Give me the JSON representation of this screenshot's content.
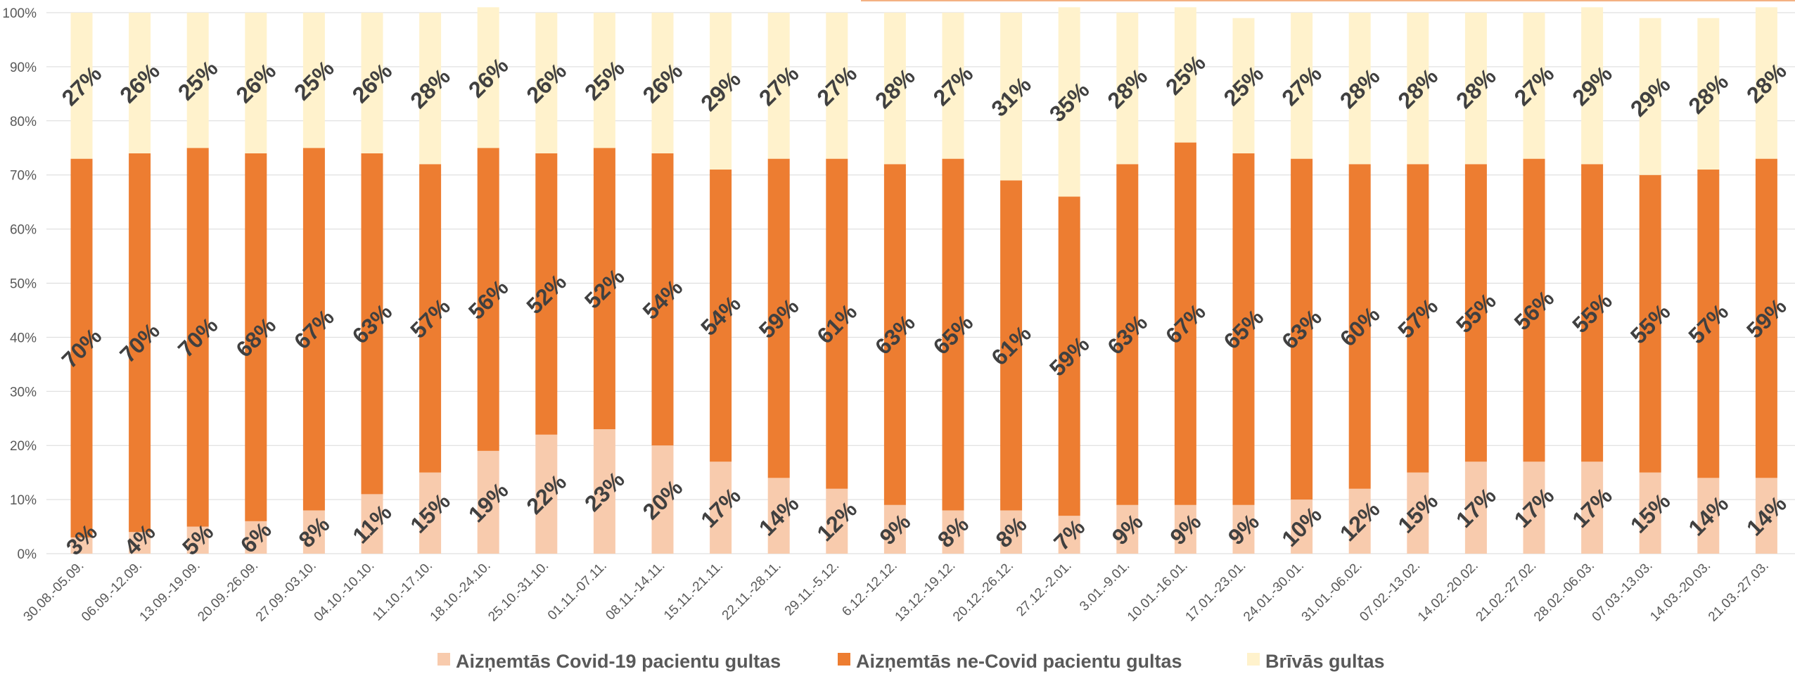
{
  "chart_data": {
    "type": "bar",
    "stacked": true,
    "percent": true,
    "categories": [
      "30.08.-05.09.",
      "06.09.-12.09.",
      "13.09.-19.09.",
      "20.09.-26.09.",
      "27.09.-03.10.",
      "04.10.-10.10.",
      "11.10.-17.10.",
      "18.10.-24.10.",
      "25.10.-31.10.",
      "01.11.-07.11.",
      "08.11.-14.11.",
      "15.11.-21.11.",
      "22.11.-28.11.",
      "29.11.-5.12.",
      "6.12.-12.12.",
      "13.12.-19.12.",
      "20.12.-26.12.",
      "27.12.-2.01.",
      "3.01.-9.01.",
      "10.01.-16.01.",
      "17.01.-23.01.",
      "24.01.-30.01.",
      "31.01.-06.02.",
      "07.02.-13.02.",
      "14.02.-20.02.",
      "21.02.-27.02.",
      "28.02.-06.03.",
      "07.03.-13.03.",
      "14.03.-20.03.",
      "21.03.-27.03."
    ],
    "series": [
      {
        "name": "Aizņemtās Covid-19 pacientu gultas",
        "color": "#f8cbad",
        "values": [
          3,
          4,
          5,
          6,
          8,
          11,
          15,
          19,
          22,
          23,
          20,
          17,
          14,
          12,
          9,
          8,
          8,
          7,
          9,
          9,
          9,
          10,
          12,
          15,
          17,
          17,
          17,
          15,
          14,
          14
        ],
        "labels": [
          "3%",
          "4%",
          "5%",
          "6%",
          "8%",
          "11%",
          "15%",
          "19%",
          "22%",
          "23%",
          "20%",
          "17%",
          "14%",
          "12%",
          "9%",
          "8%",
          "8%",
          "7%",
          "9%",
          "9%",
          "9%",
          "10%",
          "12%",
          "15%",
          "17%",
          "17%",
          "17%",
          "15%",
          "14%",
          "14%"
        ]
      },
      {
        "name": "Aizņemtās ne-Covid pacientu gultas",
        "color": "#ed7d31",
        "values": [
          70,
          70,
          70,
          68,
          67,
          63,
          57,
          56,
          52,
          52,
          54,
          54,
          59,
          61,
          63,
          65,
          61,
          59,
          63,
          67,
          65,
          63,
          60,
          57,
          55,
          56,
          55,
          55,
          57,
          59
        ],
        "labels": [
          "70%",
          "70%",
          "70%",
          "68%",
          "67%",
          "63%",
          "57%",
          "56%",
          "52%",
          "52%",
          "54%",
          "54%",
          "59%",
          "61%",
          "63%",
          "65%",
          "61%",
          "59%",
          "63%",
          "67%",
          "65%",
          "63%",
          "60%",
          "57%",
          "55%",
          "56%",
          "55%",
          "55%",
          "57%",
          "59%"
        ]
      },
      {
        "name": "Brīvās gultas",
        "color": "#fff2cc",
        "values": [
          27,
          26,
          25,
          26,
          25,
          26,
          28,
          26,
          26,
          25,
          26,
          29,
          27,
          27,
          28,
          27,
          31,
          35,
          28,
          25,
          25,
          27,
          28,
          28,
          28,
          27,
          29,
          29,
          28,
          28
        ],
        "labels": [
          "27%",
          "26%",
          "25%",
          "26%",
          "25%",
          "26%",
          "28%",
          "26%",
          "26%",
          "25%",
          "26%",
          "29%",
          "27%",
          "27%",
          "28%",
          "27%",
          "31%",
          "35%",
          "28%",
          "25%",
          "25%",
          "27%",
          "28%",
          "28%",
          "28%",
          "27%",
          "29%",
          "29%",
          "28%",
          "28%"
        ]
      }
    ],
    "ylim": [
      0,
      100
    ],
    "yticks": [
      "0%",
      "10%",
      "20%",
      "30%",
      "40%",
      "50%",
      "60%",
      "70%",
      "80%",
      "90%",
      "100%"
    ],
    "grid": true,
    "legend_position": "bottom",
    "title": "",
    "xlabel": "",
    "ylabel": "",
    "label_color": "#404040",
    "axis_text_color": "#595959",
    "gridline_color": "#d9d9d9",
    "accent_line_color": "#f4b183"
  }
}
